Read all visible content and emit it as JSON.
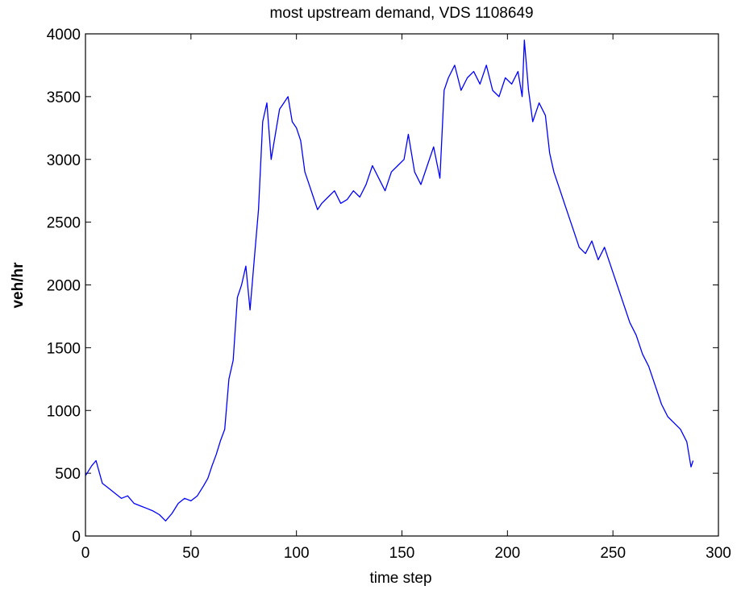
{
  "chart_data": {
    "type": "line",
    "title": "most upstream demand, VDS 1108649",
    "xlabel": "time step",
    "ylabel": "veh/hr",
    "xlim": [
      0,
      300
    ],
    "ylim": [
      0,
      4000
    ],
    "xticks": [
      "0",
      "50",
      "100",
      "150",
      "200",
      "250",
      "300"
    ],
    "yticks": [
      "0",
      "500",
      "1000",
      "1500",
      "2000",
      "2500",
      "3000",
      "3500",
      "4000"
    ],
    "grid": false,
    "line_color": "#0000ff",
    "series": [
      {
        "x": [
          0,
          3,
          5,
          8,
          11,
          14,
          17,
          20,
          23,
          26,
          29,
          32,
          35,
          38,
          41,
          44,
          47,
          50,
          53,
          56,
          58,
          60,
          62,
          64,
          66,
          68,
          70,
          72,
          74,
          76,
          78,
          80,
          82,
          84,
          86,
          88,
          90,
          92,
          94,
          96,
          98,
          100,
          102,
          104,
          106,
          108,
          110,
          112,
          115,
          118,
          121,
          124,
          127,
          130,
          133,
          136,
          139,
          142,
          145,
          148,
          151,
          153,
          156,
          159,
          162,
          165,
          168,
          170,
          172,
          175,
          178,
          181,
          184,
          187,
          190,
          193,
          196,
          199,
          202,
          205,
          207,
          208,
          210,
          212,
          215,
          218,
          220,
          222,
          225,
          228,
          231,
          234,
          237,
          240,
          243,
          246,
          249,
          252,
          255,
          258,
          261,
          264,
          267,
          270,
          273,
          276,
          279,
          282,
          285,
          286,
          287,
          288
        ],
        "values": [
          480,
          560,
          600,
          420,
          380,
          340,
          300,
          320,
          260,
          240,
          220,
          200,
          170,
          120,
          180,
          260,
          300,
          280,
          320,
          400,
          460,
          560,
          650,
          760,
          850,
          1250,
          1400,
          1900,
          2000,
          2150,
          1800,
          2200,
          2600,
          3300,
          3450,
          3000,
          3200,
          3400,
          3450,
          3500,
          3300,
          3250,
          3150,
          2900,
          2800,
          2700,
          2600,
          2650,
          2700,
          2750,
          2650,
          2680,
          2750,
          2700,
          2800,
          2950,
          2850,
          2750,
          2900,
          2950,
          3000,
          3200,
          2900,
          2800,
          2950,
          3100,
          2850,
          3550,
          3650,
          3750,
          3550,
          3650,
          3700,
          3600,
          3750,
          3550,
          3500,
          3650,
          3600,
          3700,
          3500,
          3950,
          3550,
          3300,
          3450,
          3350,
          3050,
          2900,
          2750,
          2600,
          2450,
          2300,
          2250,
          2350,
          2200,
          2300,
          2150,
          2000,
          1850,
          1700,
          1600,
          1450,
          1350,
          1200,
          1050,
          950,
          900,
          850,
          750,
          650,
          550,
          600
        ]
      }
    ]
  }
}
